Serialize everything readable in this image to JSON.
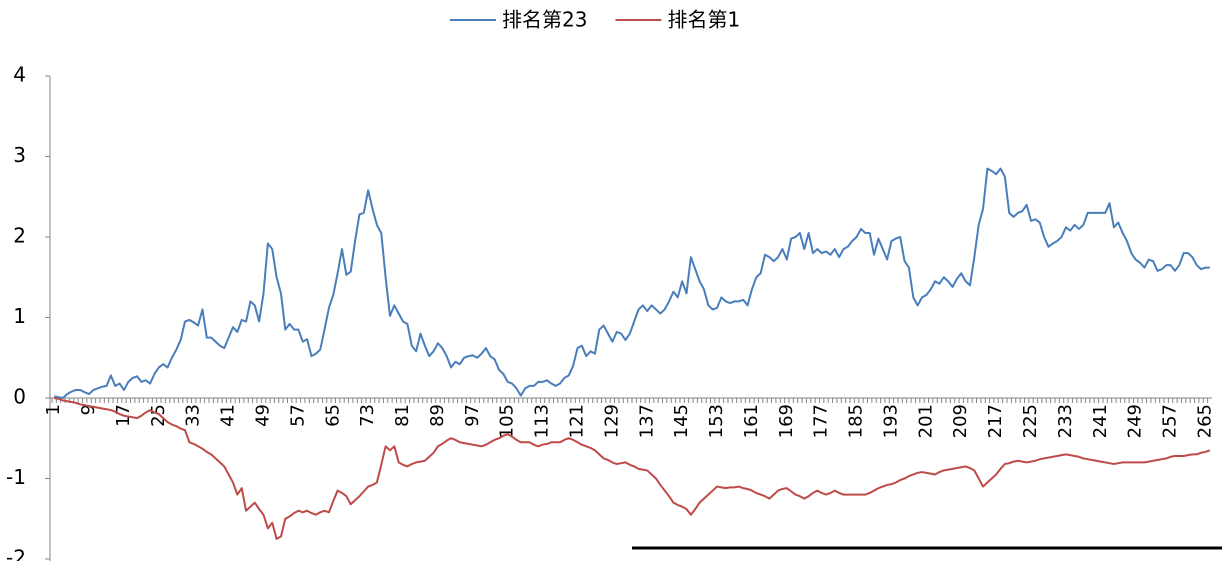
{
  "chart_data": {
    "type": "line",
    "categories": [
      1,
      null,
      null,
      null,
      null,
      null,
      null,
      null,
      9,
      null,
      null,
      null,
      null,
      null,
      null,
      null,
      17,
      null,
      null,
      null,
      null,
      null,
      null,
      null,
      25,
      null,
      null,
      null,
      null,
      null,
      null,
      null,
      33,
      null,
      null,
      null,
      null,
      null,
      null,
      null,
      41,
      null,
      null,
      null,
      null,
      null,
      null,
      null,
      49,
      null,
      null,
      null,
      null,
      null,
      null,
      null,
      57,
      null,
      null,
      null,
      null,
      null,
      null,
      null,
      65,
      null,
      null,
      null,
      null,
      null,
      null,
      null,
      73,
      null,
      null,
      null,
      null,
      null,
      null,
      null,
      81,
      null,
      null,
      null,
      null,
      null,
      null,
      null,
      89,
      null,
      null,
      null,
      null,
      null,
      null,
      null,
      97,
      null,
      null,
      null,
      null,
      null,
      null,
      null,
      105,
      null,
      null,
      null,
      null,
      null,
      null,
      null,
      113,
      null,
      null,
      null,
      null,
      null,
      null,
      null,
      121,
      null,
      null,
      null,
      null,
      null,
      null,
      null,
      129,
      null,
      null,
      null,
      null,
      null,
      null,
      null,
      137,
      null,
      null,
      null,
      null,
      null,
      null,
      null,
      145,
      null,
      null,
      null,
      null,
      null,
      null,
      null,
      153,
      null,
      null,
      null,
      null,
      null,
      null,
      null,
      161,
      null,
      null,
      null,
      null,
      null,
      null,
      null,
      169,
      null,
      null,
      null,
      null,
      null,
      null,
      null,
      177,
      null,
      null,
      null,
      null,
      null,
      null,
      null,
      185,
      null,
      null,
      null,
      null,
      null,
      null,
      null,
      193,
      null,
      null,
      null,
      null,
      null,
      null,
      null,
      201,
      null,
      null,
      null,
      null,
      null,
      null,
      null,
      209,
      null,
      null,
      null,
      null,
      null,
      null,
      null,
      217,
      null,
      null,
      null,
      null,
      null,
      null,
      null,
      225,
      null,
      null,
      null,
      null,
      null,
      null,
      null,
      233,
      null,
      null,
      null,
      null,
      null,
      null,
      null,
      241,
      null,
      null,
      null,
      null,
      null,
      null,
      null,
      249,
      null,
      null,
      null,
      null,
      null,
      null,
      null,
      257,
      null,
      null,
      null,
      null,
      null,
      null,
      null,
      265,
      null
    ],
    "series": [
      {
        "name": "排名第23",
        "color": "#4a7ebb",
        "values": [
          0.02,
          0.01,
          0.0,
          0.05,
          0.08,
          0.1,
          0.1,
          0.07,
          0.05,
          0.1,
          0.12,
          0.14,
          0.15,
          0.28,
          0.15,
          0.18,
          0.1,
          0.2,
          0.25,
          0.27,
          0.2,
          0.22,
          0.18,
          0.3,
          0.38,
          0.42,
          0.38,
          0.5,
          0.6,
          0.72,
          0.95,
          0.97,
          0.94,
          0.9,
          1.1,
          0.75,
          0.75,
          0.7,
          0.65,
          0.62,
          0.75,
          0.88,
          0.82,
          0.97,
          0.95,
          1.2,
          1.15,
          0.95,
          1.3,
          1.92,
          1.85,
          1.5,
          1.3,
          0.85,
          0.92,
          0.85,
          0.85,
          0.7,
          0.73,
          0.52,
          0.55,
          0.6,
          0.85,
          1.12,
          1.28,
          1.55,
          1.85,
          1.53,
          1.57,
          1.95,
          2.28,
          2.3,
          2.58,
          2.35,
          2.15,
          2.05,
          1.5,
          1.02,
          1.15,
          1.05,
          0.95,
          0.92,
          0.65,
          0.58,
          0.8,
          0.65,
          0.52,
          0.58,
          0.68,
          0.62,
          0.52,
          0.38,
          0.45,
          0.42,
          0.5,
          0.52,
          0.53,
          0.5,
          0.55,
          0.62,
          0.52,
          0.48,
          0.35,
          0.3,
          0.2,
          0.18,
          0.12,
          0.03,
          0.12,
          0.15,
          0.15,
          0.2,
          0.2,
          0.22,
          0.18,
          0.15,
          0.18,
          0.25,
          0.28,
          0.4,
          0.62,
          0.65,
          0.52,
          0.58,
          0.55,
          0.85,
          0.9,
          0.8,
          0.7,
          0.82,
          0.8,
          0.72,
          0.8,
          0.95,
          1.1,
          1.15,
          1.08,
          1.15,
          1.1,
          1.05,
          1.1,
          1.2,
          1.32,
          1.25,
          1.45,
          1.3,
          1.75,
          1.6,
          1.45,
          1.35,
          1.15,
          1.1,
          1.12,
          1.25,
          1.2,
          1.18,
          1.2,
          1.2,
          1.22,
          1.15,
          1.35,
          1.5,
          1.55,
          1.78,
          1.75,
          1.7,
          1.75,
          1.85,
          1.72,
          1.98,
          2.0,
          2.05,
          1.85,
          2.05,
          1.8,
          1.85,
          1.8,
          1.82,
          1.78,
          1.85,
          1.75,
          1.85,
          1.88,
          1.95,
          2.0,
          2.1,
          2.05,
          2.05,
          1.78,
          1.98,
          1.85,
          1.72,
          1.95,
          1.98,
          2.0,
          1.7,
          1.62,
          1.25,
          1.15,
          1.25,
          1.28,
          1.35,
          1.45,
          1.42,
          1.5,
          1.45,
          1.38,
          1.48,
          1.55,
          1.45,
          1.4,
          1.75,
          2.15,
          2.35,
          2.85,
          2.82,
          2.78,
          2.85,
          2.75,
          2.3,
          2.25,
          2.3,
          2.32,
          2.4,
          2.2,
          2.22,
          2.18,
          2.0,
          1.88,
          1.92,
          1.95,
          2.0,
          2.12,
          2.08,
          2.15,
          2.1,
          2.15,
          2.3,
          2.3,
          2.3,
          2.3,
          2.3,
          2.42,
          2.12,
          2.18,
          2.05,
          1.95,
          1.8,
          1.72,
          1.68,
          1.62,
          1.72,
          1.7,
          1.58,
          1.6,
          1.65,
          1.65,
          1.58,
          1.65,
          1.8,
          1.8,
          1.75,
          1.65,
          1.6,
          1.62,
          1.62
        ]
      },
      {
        "name": "排名第1",
        "color": "#be4b48",
        "values": [
          0,
          -0.01,
          -0.03,
          -0.04,
          -0.05,
          -0.06,
          -0.08,
          -0.09,
          -0.1,
          -0.11,
          -0.12,
          -0.13,
          -0.14,
          -0.15,
          -0.17,
          -0.2,
          -0.22,
          -0.23,
          -0.24,
          -0.25,
          -0.22,
          -0.18,
          -0.15,
          -0.18,
          -0.2,
          -0.25,
          -0.3,
          -0.33,
          -0.35,
          -0.38,
          -0.4,
          -0.55,
          -0.57,
          -0.6,
          -0.63,
          -0.67,
          -0.7,
          -0.75,
          -0.8,
          -0.85,
          -0.95,
          -1.05,
          -1.2,
          -1.12,
          -1.4,
          -1.35,
          -1.3,
          -1.38,
          -1.45,
          -1.62,
          -1.55,
          -1.75,
          -1.72,
          -1.5,
          -1.47,
          -1.43,
          -1.4,
          -1.42,
          -1.4,
          -1.43,
          -1.45,
          -1.42,
          -1.4,
          -1.42,
          -1.28,
          -1.15,
          -1.18,
          -1.22,
          -1.32,
          -1.27,
          -1.22,
          -1.16,
          -1.1,
          -1.08,
          -1.05,
          -0.83,
          -0.6,
          -0.65,
          -0.6,
          -0.8,
          -0.83,
          -0.85,
          -0.82,
          -0.8,
          -0.79,
          -0.78,
          -0.73,
          -0.68,
          -0.6,
          -0.57,
          -0.53,
          -0.5,
          -0.52,
          -0.55,
          -0.56,
          -0.57,
          -0.58,
          -0.59,
          -0.6,
          -0.58,
          -0.55,
          -0.52,
          -0.5,
          -0.47,
          -0.45,
          -0.48,
          -0.52,
          -0.55,
          -0.55,
          -0.55,
          -0.58,
          -0.6,
          -0.58,
          -0.57,
          -0.55,
          -0.55,
          -0.55,
          -0.52,
          -0.5,
          -0.52,
          -0.55,
          -0.58,
          -0.6,
          -0.62,
          -0.65,
          -0.7,
          -0.75,
          -0.77,
          -0.8,
          -0.82,
          -0.81,
          -0.8,
          -0.83,
          -0.85,
          -0.88,
          -0.89,
          -0.9,
          -0.95,
          -1.0,
          -1.08,
          -1.15,
          -1.22,
          -1.3,
          -1.33,
          -1.35,
          -1.38,
          -1.45,
          -1.38,
          -1.3,
          -1.25,
          -1.2,
          -1.15,
          -1.1,
          -1.11,
          -1.12,
          -1.11,
          -1.11,
          -1.1,
          -1.12,
          -1.13,
          -1.15,
          -1.18,
          -1.2,
          -1.22,
          -1.25,
          -1.2,
          -1.15,
          -1.13,
          -1.12,
          -1.16,
          -1.2,
          -1.22,
          -1.25,
          -1.22,
          -1.18,
          -1.15,
          -1.18,
          -1.2,
          -1.18,
          -1.15,
          -1.18,
          -1.2,
          -1.2,
          -1.2,
          -1.2,
          -1.2,
          -1.2,
          -1.18,
          -1.15,
          -1.12,
          -1.1,
          -1.08,
          -1.07,
          -1.05,
          -1.02,
          -1.0,
          -0.97,
          -0.95,
          -0.93,
          -0.92,
          -0.93,
          -0.94,
          -0.95,
          -0.92,
          -0.9,
          -0.89,
          -0.88,
          -0.87,
          -0.86,
          -0.85,
          -0.87,
          -0.9,
          -1.0,
          -1.1,
          -1.05,
          -1.0,
          -0.95,
          -0.88,
          -0.82,
          -0.81,
          -0.79,
          -0.78,
          -0.79,
          -0.8,
          -0.79,
          -0.78,
          -0.76,
          -0.75,
          -0.74,
          -0.73,
          -0.72,
          -0.71,
          -0.7,
          -0.71,
          -0.72,
          -0.73,
          -0.75,
          -0.76,
          -0.77,
          -0.78,
          -0.79,
          -0.8,
          -0.81,
          -0.82,
          -0.81,
          -0.8,
          -0.8,
          -0.8,
          -0.8,
          -0.8,
          -0.8,
          -0.79,
          -0.78,
          -0.77,
          -0.76,
          -0.75,
          -0.73,
          -0.72,
          -0.72,
          -0.72,
          -0.71,
          -0.7,
          -0.7,
          -0.68,
          -0.67,
          -0.65
        ]
      }
    ],
    "ylim": [
      -2,
      4
    ],
    "yticks": [
      -2,
      -1,
      0,
      1,
      2,
      3,
      4
    ],
    "grid": false,
    "legend": "top"
  }
}
